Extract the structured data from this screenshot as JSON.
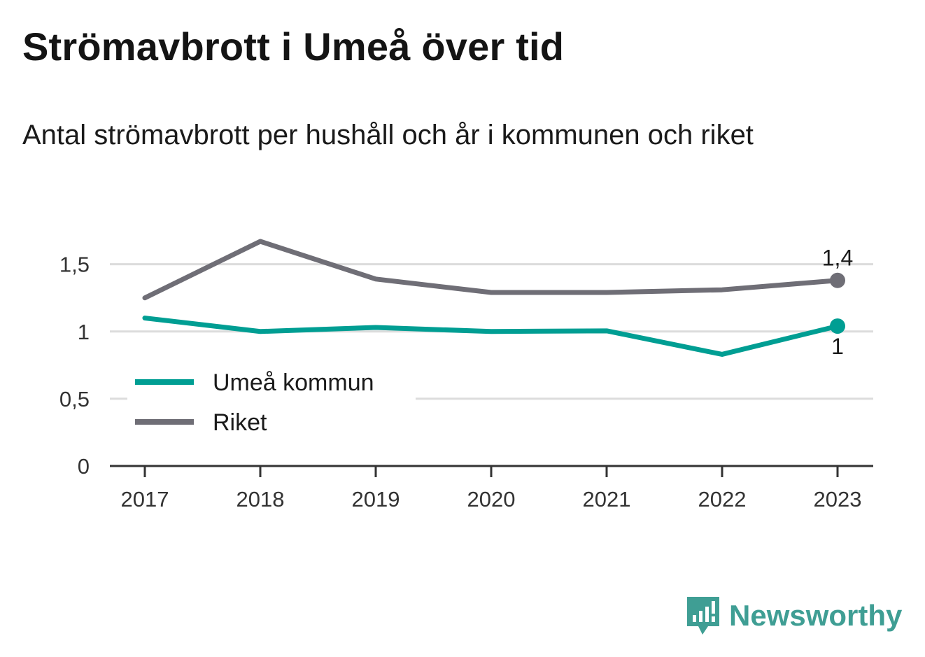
{
  "header": {
    "title": "Strömavbrott i Umeå över tid",
    "subtitle": "Antal strömavbrott per hushåll och år i kommunen och riket"
  },
  "brand": {
    "name": "Newsworthy",
    "icon": "newsworthy-logo-icon",
    "color": "#3f9e94"
  },
  "chart_data": {
    "type": "line",
    "title": "Strömavbrott i Umeå över tid",
    "subtitle": "Antal strömavbrott per hushåll och år i kommunen och riket",
    "x": [
      "2017",
      "2018",
      "2019",
      "2020",
      "2021",
      "2022",
      "2023"
    ],
    "ylim": [
      0,
      1.8
    ],
    "yticks": [
      0,
      0.5,
      1,
      1.5
    ],
    "ytick_labels": [
      "0",
      "0,5",
      "1",
      "1,5"
    ],
    "grid": true,
    "legend_position": "bottom-left",
    "series": [
      {
        "name": "Umeå kommun",
        "color": "#009e93",
        "values": [
          1.1,
          1.0,
          1.03,
          1.0,
          1.005,
          0.83,
          1.04
        ],
        "end_label": "1",
        "end_label_position": "below"
      },
      {
        "name": "Riket",
        "color": "#6f6e76",
        "values": [
          1.25,
          1.67,
          1.39,
          1.29,
          1.29,
          1.31,
          1.38
        ],
        "end_label": "1,4",
        "end_label_position": "above"
      }
    ]
  }
}
